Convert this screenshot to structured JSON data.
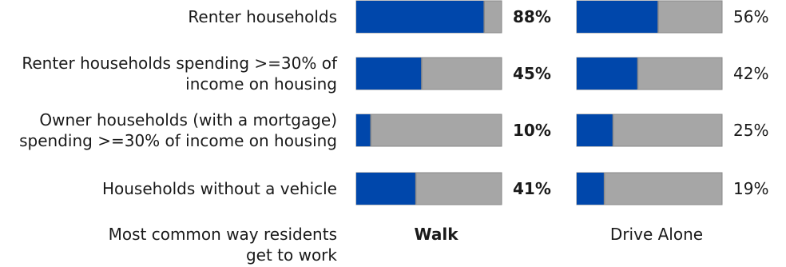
{
  "chart_data": {
    "type": "bar",
    "categories": [
      [
        "Renter households"
      ],
      [
        "Renter households spending >=30% of",
        "income on housing"
      ],
      [
        "Owner households (with a mortgage)",
        "spending >=30% of income on housing"
      ],
      [
        "Households without a vehicle"
      ]
    ],
    "xlim": [
      0,
      100
    ],
    "series": [
      {
        "name": "Walk",
        "values": [
          88,
          45,
          10,
          41
        ],
        "labels": [
          "88%",
          "45%",
          "10%",
          "41%"
        ],
        "emphasis": "bold"
      },
      {
        "name": "Drive Alone",
        "values": [
          56,
          42,
          25,
          19
        ],
        "labels": [
          "56%",
          "42%",
          "25%",
          "19%"
        ],
        "emphasis": "normal"
      }
    ],
    "footer_label": [
      "Most common way residents",
      "get to work"
    ],
    "colors": {
      "filled": "#0047AB",
      "remainder": "#A6A6A6",
      "border": "#888888"
    }
  }
}
